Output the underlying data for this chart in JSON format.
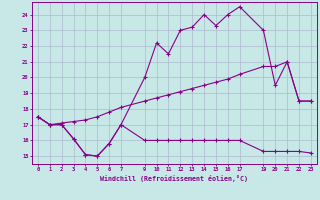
{
  "bg_color": "#c8e8e8",
  "grid_color": "#aabbcc",
  "line_color": "#880088",
  "xlabel": "Windchill (Refroidissement éolien,°C)",
  "xlim": [
    -0.5,
    23.5
  ],
  "ylim": [
    14.5,
    24.8
  ],
  "yticks": [
    15,
    16,
    17,
    18,
    19,
    20,
    21,
    22,
    23,
    24
  ],
  "xticks": [
    0,
    1,
    2,
    3,
    4,
    5,
    6,
    7,
    9,
    10,
    11,
    12,
    13,
    14,
    15,
    16,
    17,
    19,
    20,
    21,
    22,
    23
  ],
  "line1_x": [
    0,
    1,
    2,
    3,
    4,
    5,
    6,
    7,
    9,
    10,
    11,
    12,
    13,
    14,
    15,
    16,
    17,
    19,
    20,
    21,
    22,
    23
  ],
  "line1_y": [
    17.5,
    17.0,
    17.0,
    16.1,
    15.1,
    15.0,
    15.8,
    17.0,
    16.0,
    16.0,
    16.0,
    16.0,
    16.0,
    16.0,
    16.0,
    16.0,
    16.0,
    15.3,
    15.3,
    15.3,
    15.3,
    15.2
  ],
  "line2_x": [
    0,
    1,
    2,
    3,
    4,
    5,
    6,
    7,
    9,
    10,
    11,
    12,
    13,
    14,
    15,
    16,
    17,
    19,
    20,
    21,
    22,
    23
  ],
  "line2_y": [
    17.5,
    17.0,
    17.1,
    17.2,
    17.3,
    17.5,
    17.8,
    18.1,
    18.5,
    18.7,
    18.9,
    19.1,
    19.3,
    19.5,
    19.7,
    19.9,
    20.2,
    20.7,
    20.7,
    21.0,
    18.5,
    18.5
  ],
  "line3_x": [
    0,
    1,
    2,
    3,
    4,
    5,
    6,
    7,
    9,
    10,
    11,
    12,
    13,
    14,
    15,
    16,
    17,
    19,
    20,
    21,
    22,
    23
  ],
  "line3_y": [
    17.5,
    17.0,
    17.0,
    16.1,
    15.1,
    15.0,
    15.8,
    17.0,
    20.0,
    22.2,
    21.5,
    23.0,
    23.2,
    24.0,
    23.3,
    24.0,
    24.5,
    23.0,
    19.5,
    21.0,
    18.5,
    18.5
  ]
}
